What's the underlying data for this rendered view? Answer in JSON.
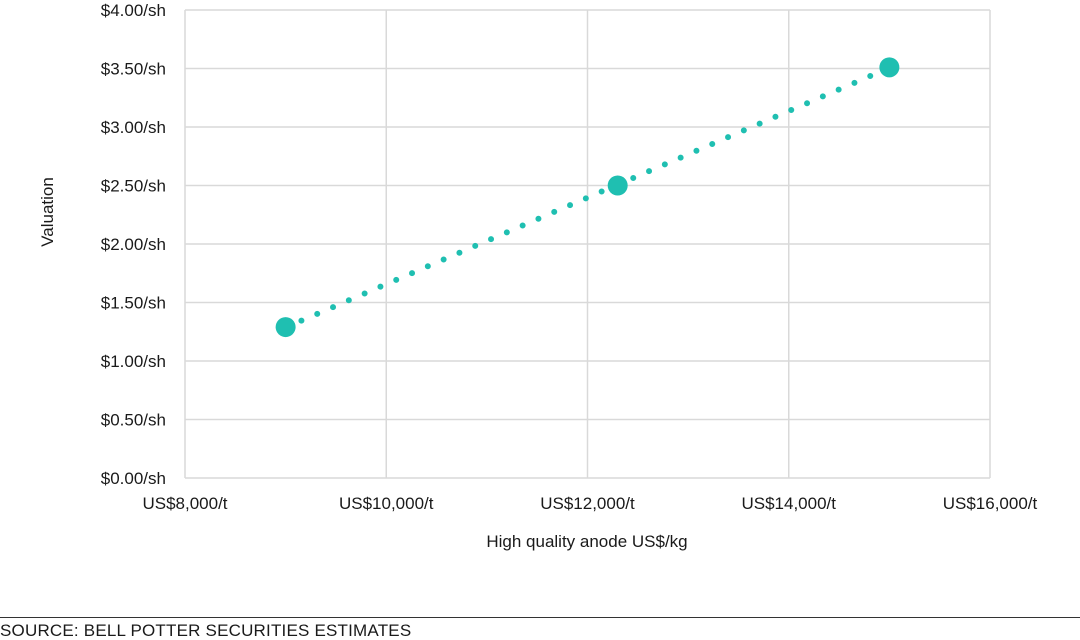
{
  "chart_data": {
    "type": "scatter",
    "title": "",
    "xlabel": "High quality anode US$/kg",
    "ylabel": "Valuation",
    "xlim": [
      8000,
      16000
    ],
    "ylim": [
      0,
      4
    ],
    "x_ticks": [
      8000,
      10000,
      12000,
      14000,
      16000
    ],
    "x_tick_labels": [
      "US$8,000/t",
      "US$10,000/t",
      "US$12,000/t",
      "US$14,000/t",
      "US$16,000/t"
    ],
    "y_ticks": [
      0,
      0.5,
      1,
      1.5,
      2,
      2.5,
      3,
      3.5,
      4
    ],
    "y_tick_labels": [
      "$0.00/sh",
      "$0.50/sh",
      "$1.00/sh",
      "$1.50/sh",
      "$2.00/sh",
      "$2.50/sh",
      "$3.00/sh",
      "$3.50/sh",
      "$4.00/sh"
    ],
    "grid": true,
    "trendline": "dotted linear",
    "series": [
      {
        "color": "#1fbfb1",
        "points": [
          {
            "x": 9000,
            "y": 1.29
          },
          {
            "x": 12300,
            "y": 2.5
          },
          {
            "x": 15000,
            "y": 3.51
          }
        ]
      }
    ]
  },
  "source": "SOURCE: BELL POTTER SECURITIES ESTIMATES"
}
